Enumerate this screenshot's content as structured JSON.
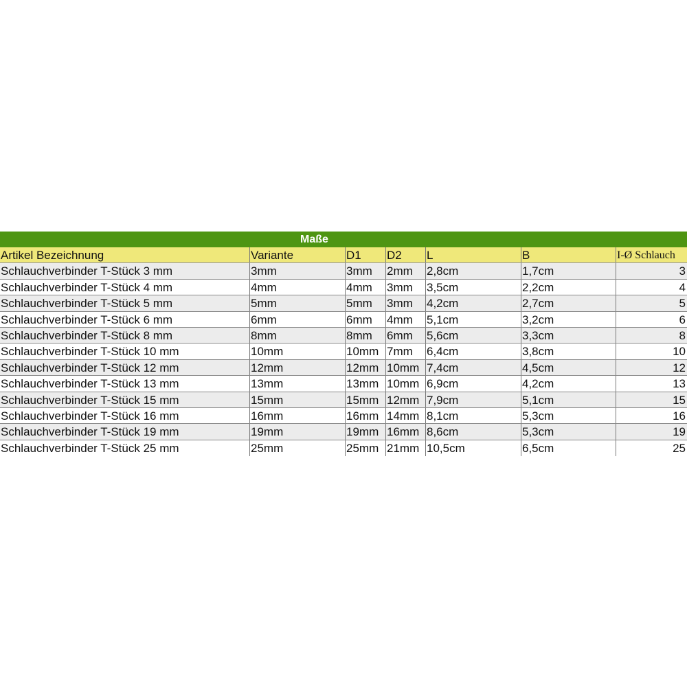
{
  "title": "Maße",
  "headers": [
    "Artikel Bezeichnung",
    "Variante",
    "D1",
    "D2",
    "L",
    "B",
    "I-Ø Schlauch"
  ],
  "rows": [
    [
      "Schlauchverbinder T-Stück 3 mm",
      "3mm",
      "3mm",
      "2mm",
      "2,8cm",
      "1,7cm",
      "3"
    ],
    [
      "Schlauchverbinder T-Stück 4 mm",
      "4mm",
      "4mm",
      "3mm",
      "3,5cm",
      "2,2cm",
      "4"
    ],
    [
      "Schlauchverbinder T-Stück 5 mm",
      "5mm",
      "5mm",
      "3mm",
      "4,2cm",
      "2,7cm",
      "5"
    ],
    [
      "Schlauchverbinder T-Stück 6 mm",
      "6mm",
      "6mm",
      "4mm",
      "5,1cm",
      "3,2cm",
      "6"
    ],
    [
      "Schlauchverbinder T-Stück 8 mm",
      "8mm",
      "8mm",
      "6mm",
      "5,6cm",
      "3,3cm",
      "8"
    ],
    [
      "Schlauchverbinder T-Stück 10 mm",
      "10mm",
      "10mm",
      "7mm",
      "6,4cm",
      "3,8cm",
      "10"
    ],
    [
      "Schlauchverbinder T-Stück 12 mm",
      "12mm",
      "12mm",
      "10mm",
      "7,4cm",
      "4,5cm",
      "12"
    ],
    [
      "Schlauchverbinder T-Stück 13 mm",
      "13mm",
      "13mm",
      "10mm",
      "6,9cm",
      "4,2cm",
      "13"
    ],
    [
      "Schlauchverbinder T-Stück 15 mm",
      "15mm",
      "15mm",
      "12mm",
      "7,9cm",
      "5,1cm",
      "15"
    ],
    [
      "Schlauchverbinder T-Stück 16 mm",
      "16mm",
      "16mm",
      "14mm",
      "8,1cm",
      "5,3cm",
      "16"
    ],
    [
      "Schlauchverbinder T-Stück 19 mm",
      "19mm",
      "19mm",
      "16mm",
      "8,6cm",
      "5,3cm",
      "19"
    ],
    [
      "Schlauchverbinder T-Stück 25 mm",
      "25mm",
      "25mm",
      "21mm",
      "10,5cm",
      "6,5cm",
      "25"
    ]
  ],
  "colors": {
    "title_bg": "#4e9512",
    "header_bg": "#efe87a",
    "alt_row_bg": "#ececec"
  }
}
